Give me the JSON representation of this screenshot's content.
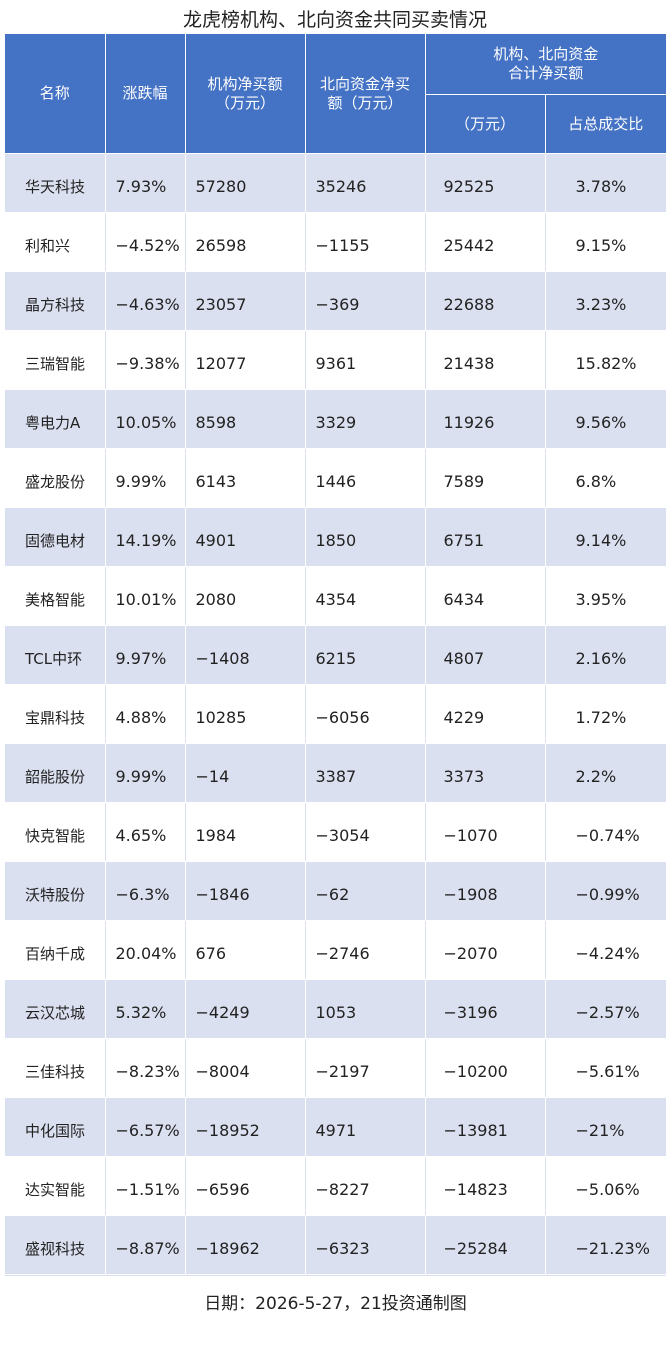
{
  "title": "龙虎榜机构、北向资金共同买卖情况",
  "colors": {
    "header_bg": "#4472c4",
    "band_bg": "#dbe0f0"
  },
  "headers": {
    "name": "名称",
    "change": "涨跌幅",
    "inst_net": "机构净买额\n（万元）",
    "north_net": "北向资金净买\n额（万元）",
    "combined_group": "机构、北向资金\n合计净买额",
    "combined_unit": "（万元）",
    "turnover_ratio": "占总成交比"
  },
  "rows": [
    [
      "华天科技",
      "7.93%",
      "57280",
      "35246",
      "92525",
      "3.78%"
    ],
    [
      "利和兴",
      "−4.52%",
      "26598",
      "−1155",
      "25442",
      "9.15%"
    ],
    [
      "晶方科技",
      "−4.63%",
      "23057",
      "−369",
      "22688",
      "3.23%"
    ],
    [
      "三瑞智能",
      "−9.38%",
      "12077",
      "9361",
      "21438",
      "15.82%"
    ],
    [
      "粤电力A",
      "10.05%",
      "8598",
      "3329",
      "11926",
      "9.56%"
    ],
    [
      "盛龙股份",
      "9.99%",
      "6143",
      "1446",
      "7589",
      "6.8%"
    ],
    [
      "固德电材",
      "14.19%",
      "4901",
      "1850",
      "6751",
      "9.14%"
    ],
    [
      "美格智能",
      "10.01%",
      "2080",
      "4354",
      "6434",
      "3.95%"
    ],
    [
      "TCL中环",
      "9.97%",
      "−1408",
      "6215",
      "4807",
      "2.16%"
    ],
    [
      "宝鼎科技",
      "4.88%",
      "10285",
      "−6056",
      "4229",
      "1.72%"
    ],
    [
      "韶能股份",
      "9.99%",
      "−14",
      "3387",
      "3373",
      "2.2%"
    ],
    [
      "快克智能",
      "4.65%",
      "1984",
      "−3054",
      "−1070",
      "−0.74%"
    ],
    [
      "沃特股份",
      "−6.3%",
      "−1846",
      "−62",
      "−1908",
      "−0.99%"
    ],
    [
      "百纳千成",
      "20.04%",
      "676",
      "−2746",
      "−2070",
      "−4.24%"
    ],
    [
      "云汉芯城",
      "5.32%",
      "−4249",
      "1053",
      "−3196",
      "−2.57%"
    ],
    [
      "三佳科技",
      "−8.23%",
      "−8004",
      "−2197",
      "−10200",
      "−5.61%"
    ],
    [
      "中化国际",
      "−6.57%",
      "−18952",
      "4971",
      "−13981",
      "−21%"
    ],
    [
      "达实智能",
      "−1.51%",
      "−6596",
      "−8227",
      "−14823",
      "−5.06%"
    ],
    [
      "盛视科技",
      "−8.87%",
      "−18962",
      "−6323",
      "−25284",
      "−21.23%"
    ]
  ],
  "footer": "日期：2026-5-27，21投资通制图"
}
